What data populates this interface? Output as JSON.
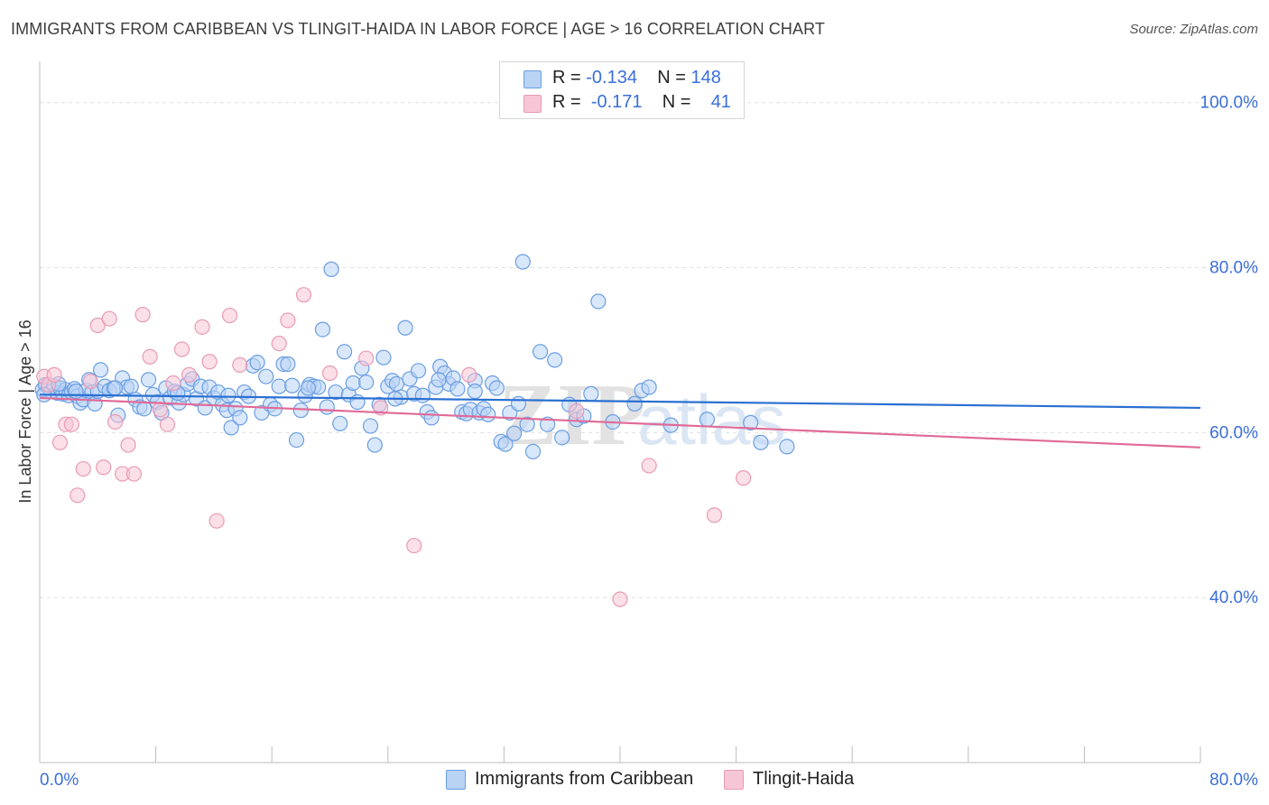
{
  "title": "IMMIGRANTS FROM CARIBBEAN VS TLINGIT-HAIDA IN LABOR FORCE | AGE > 16 CORRELATION CHART",
  "source": "Source: ZipAtlas.com",
  "watermark": {
    "part1": "ZIP",
    "part2": "atlas"
  },
  "legend": {
    "rows": [
      {
        "r_label": "R =",
        "r_value": "-0.134",
        "n_label": "N =",
        "n_value": "148"
      },
      {
        "r_label": "R =",
        "r_value": "-0.171",
        "n_label": "N =",
        "n_value": "41"
      }
    ]
  },
  "bottom_legend": {
    "series1": "Immigrants from Caribbean",
    "series2": "Tlingit-Haida"
  },
  "colors": {
    "blue_fill": "#b9d3f5",
    "blue_stroke": "#6a9ee2",
    "blue_line": "#2a6fd1",
    "pink_fill": "#f7c6d6",
    "pink_stroke": "#e99ab5",
    "pink_line": "#e06a97",
    "tick_label": "#3a6fd8",
    "grid": "#e0e0e0"
  },
  "chart_data": {
    "type": "scatter",
    "title": "IMMIGRANTS FROM CARIBBEAN VS TLINGIT-HAIDA IN LABOR FORCE | AGE > 16 CORRELATION CHART",
    "xlabel": "",
    "ylabel": "In Labor Force | Age > 16",
    "xlim": [
      0,
      80
    ],
    "ylim": [
      20,
      105
    ],
    "x_tick_labels": [
      "0.0%",
      "80.0%"
    ],
    "y_ticks": [
      40,
      60,
      80,
      100
    ],
    "y_tick_labels": [
      "40.0%",
      "60.0%",
      "80.0%",
      "100.0%"
    ],
    "grid": true,
    "legend_position": "top-center",
    "series": [
      {
        "name": "Immigrants from Caribbean",
        "color": "#6a9ee2",
        "trend": {
          "x": [
            0,
            80
          ],
          "y": [
            64.6,
            63.0
          ]
        },
        "points": [
          [
            0.2,
            65.2
          ],
          [
            0.4,
            65.8
          ],
          [
            0.6,
            65.5
          ],
          [
            0.8,
            65.0
          ],
          [
            1.0,
            65.6
          ],
          [
            1.2,
            64.8
          ],
          [
            1.4,
            65.4
          ],
          [
            1.6,
            64.7
          ],
          [
            1.8,
            65.2
          ],
          [
            2.0,
            64.5
          ],
          [
            2.2,
            64.9
          ],
          [
            2.4,
            65.3
          ],
          [
            2.6,
            64.4
          ],
          [
            2.8,
            63.6
          ],
          [
            3.0,
            64.0
          ],
          [
            3.2,
            65.1
          ],
          [
            3.4,
            66.4
          ],
          [
            3.6,
            64.9
          ],
          [
            3.8,
            63.5
          ],
          [
            4.0,
            65.0
          ],
          [
            4.2,
            67.6
          ],
          [
            4.5,
            65.6
          ],
          [
            4.8,
            65.1
          ],
          [
            5.1,
            65.4
          ],
          [
            5.4,
            62.1
          ],
          [
            5.7,
            66.6
          ],
          [
            6.0,
            65.5
          ],
          [
            6.3,
            65.6
          ],
          [
            6.6,
            64.0
          ],
          [
            6.9,
            63.1
          ],
          [
            7.2,
            62.9
          ],
          [
            7.5,
            66.4
          ],
          [
            7.8,
            64.6
          ],
          [
            8.1,
            63.7
          ],
          [
            8.4,
            62.4
          ],
          [
            8.7,
            65.4
          ],
          [
            9.0,
            64.2
          ],
          [
            9.3,
            65.0
          ],
          [
            9.6,
            63.6
          ],
          [
            9.9,
            64.6
          ],
          [
            10.2,
            65.9
          ],
          [
            10.5,
            66.5
          ],
          [
            10.8,
            64.1
          ],
          [
            11.1,
            65.6
          ],
          [
            11.4,
            63.0
          ],
          [
            11.7,
            65.5
          ],
          [
            12.0,
            64.2
          ],
          [
            12.3,
            64.9
          ],
          [
            12.6,
            63.4
          ],
          [
            12.9,
            62.7
          ],
          [
            13.2,
            60.6
          ],
          [
            13.5,
            62.9
          ],
          [
            13.8,
            61.8
          ],
          [
            14.1,
            64.9
          ],
          [
            14.4,
            64.4
          ],
          [
            14.7,
            68.1
          ],
          [
            15.0,
            68.5
          ],
          [
            15.3,
            62.4
          ],
          [
            15.6,
            66.8
          ],
          [
            15.9,
            63.4
          ],
          [
            16.2,
            62.9
          ],
          [
            16.5,
            65.6
          ],
          [
            16.8,
            68.3
          ],
          [
            17.1,
            68.3
          ],
          [
            17.4,
            65.7
          ],
          [
            17.7,
            59.1
          ],
          [
            18.0,
            62.7
          ],
          [
            18.3,
            64.5
          ],
          [
            18.6,
            65.8
          ],
          [
            18.9,
            65.6
          ],
          [
            19.2,
            65.5
          ],
          [
            19.5,
            72.5
          ],
          [
            19.8,
            63.1
          ],
          [
            20.1,
            79.8
          ],
          [
            20.4,
            64.9
          ],
          [
            20.7,
            61.1
          ],
          [
            21.0,
            69.8
          ],
          [
            21.3,
            64.6
          ],
          [
            21.6,
            66.0
          ],
          [
            21.9,
            63.7
          ],
          [
            22.2,
            67.8
          ],
          [
            22.5,
            66.1
          ],
          [
            22.8,
            60.8
          ],
          [
            23.1,
            58.5
          ],
          [
            23.4,
            63.4
          ],
          [
            23.7,
            69.1
          ],
          [
            24.0,
            65.6
          ],
          [
            24.3,
            66.3
          ],
          [
            24.6,
            65.9
          ],
          [
            24.9,
            64.3
          ],
          [
            25.2,
            72.7
          ],
          [
            25.5,
            66.5
          ],
          [
            25.8,
            64.7
          ],
          [
            26.1,
            67.5
          ],
          [
            26.4,
            64.5
          ],
          [
            26.7,
            62.5
          ],
          [
            27.0,
            61.8
          ],
          [
            27.3,
            65.5
          ],
          [
            27.6,
            68.0
          ],
          [
            27.9,
            67.2
          ],
          [
            28.2,
            65.9
          ],
          [
            28.5,
            66.6
          ],
          [
            28.8,
            65.3
          ],
          [
            29.1,
            62.5
          ],
          [
            29.4,
            62.3
          ],
          [
            29.7,
            62.8
          ],
          [
            30.0,
            66.3
          ],
          [
            30.3,
            62.4
          ],
          [
            30.6,
            62.9
          ],
          [
            30.9,
            62.2
          ],
          [
            31.2,
            66.0
          ],
          [
            31.5,
            65.4
          ],
          [
            31.8,
            58.9
          ],
          [
            32.1,
            58.6
          ],
          [
            32.4,
            62.4
          ],
          [
            32.7,
            59.9
          ],
          [
            33.0,
            63.5
          ],
          [
            33.3,
            80.7
          ],
          [
            33.6,
            61.0
          ],
          [
            34.0,
            57.7
          ],
          [
            34.5,
            69.8
          ],
          [
            35.0,
            61.0
          ],
          [
            35.5,
            68.8
          ],
          [
            36.0,
            59.4
          ],
          [
            36.5,
            63.4
          ],
          [
            37.0,
            61.6
          ],
          [
            37.5,
            62.0
          ],
          [
            38.0,
            64.7
          ],
          [
            38.5,
            75.9
          ],
          [
            39.5,
            61.3
          ],
          [
            41.0,
            63.5
          ],
          [
            41.5,
            65.1
          ],
          [
            42.0,
            65.5
          ],
          [
            43.5,
            60.9
          ],
          [
            46.0,
            61.6
          ],
          [
            49.0,
            61.2
          ],
          [
            49.7,
            58.8
          ],
          [
            51.5,
            58.3
          ],
          [
            0.3,
            64.6
          ],
          [
            1.3,
            65.9
          ],
          [
            2.5,
            65.0
          ],
          [
            5.2,
            65.4
          ],
          [
            9.5,
            64.8
          ],
          [
            13.0,
            64.5
          ],
          [
            18.5,
            65.4
          ],
          [
            24.5,
            64.1
          ],
          [
            27.5,
            66.4
          ],
          [
            30.0,
            65.0
          ]
        ]
      },
      {
        "name": "Tlingit-Haida",
        "color": "#e99ab5",
        "trend": {
          "x": [
            0,
            80
          ],
          "y": [
            64.2,
            58.2
          ]
        },
        "points": [
          [
            0.3,
            66.8
          ],
          [
            0.6,
            65.8
          ],
          [
            1.0,
            67.0
          ],
          [
            1.4,
            58.8
          ],
          [
            1.8,
            61.0
          ],
          [
            2.2,
            61.0
          ],
          [
            2.6,
            52.4
          ],
          [
            3.0,
            55.6
          ],
          [
            3.5,
            66.2
          ],
          [
            4.0,
            73.0
          ],
          [
            4.4,
            55.8
          ],
          [
            4.8,
            73.8
          ],
          [
            5.2,
            61.3
          ],
          [
            5.7,
            55.0
          ],
          [
            6.1,
            58.5
          ],
          [
            6.5,
            55.0
          ],
          [
            7.1,
            74.3
          ],
          [
            7.6,
            69.2
          ],
          [
            8.3,
            62.8
          ],
          [
            8.8,
            61.0
          ],
          [
            9.2,
            66.0
          ],
          [
            9.8,
            70.1
          ],
          [
            10.3,
            67.0
          ],
          [
            11.2,
            72.8
          ],
          [
            11.7,
            68.6
          ],
          [
            12.2,
            49.3
          ],
          [
            13.1,
            74.2
          ],
          [
            13.8,
            68.2
          ],
          [
            16.5,
            70.8
          ],
          [
            17.1,
            73.6
          ],
          [
            18.2,
            76.7
          ],
          [
            20.0,
            67.2
          ],
          [
            22.5,
            69.0
          ],
          [
            23.5,
            63.0
          ],
          [
            25.8,
            46.3
          ],
          [
            29.6,
            67.0
          ],
          [
            37.0,
            62.6
          ],
          [
            40.0,
            39.8
          ],
          [
            42.0,
            56.0
          ],
          [
            46.5,
            50.0
          ],
          [
            48.5,
            54.5
          ]
        ]
      }
    ]
  }
}
